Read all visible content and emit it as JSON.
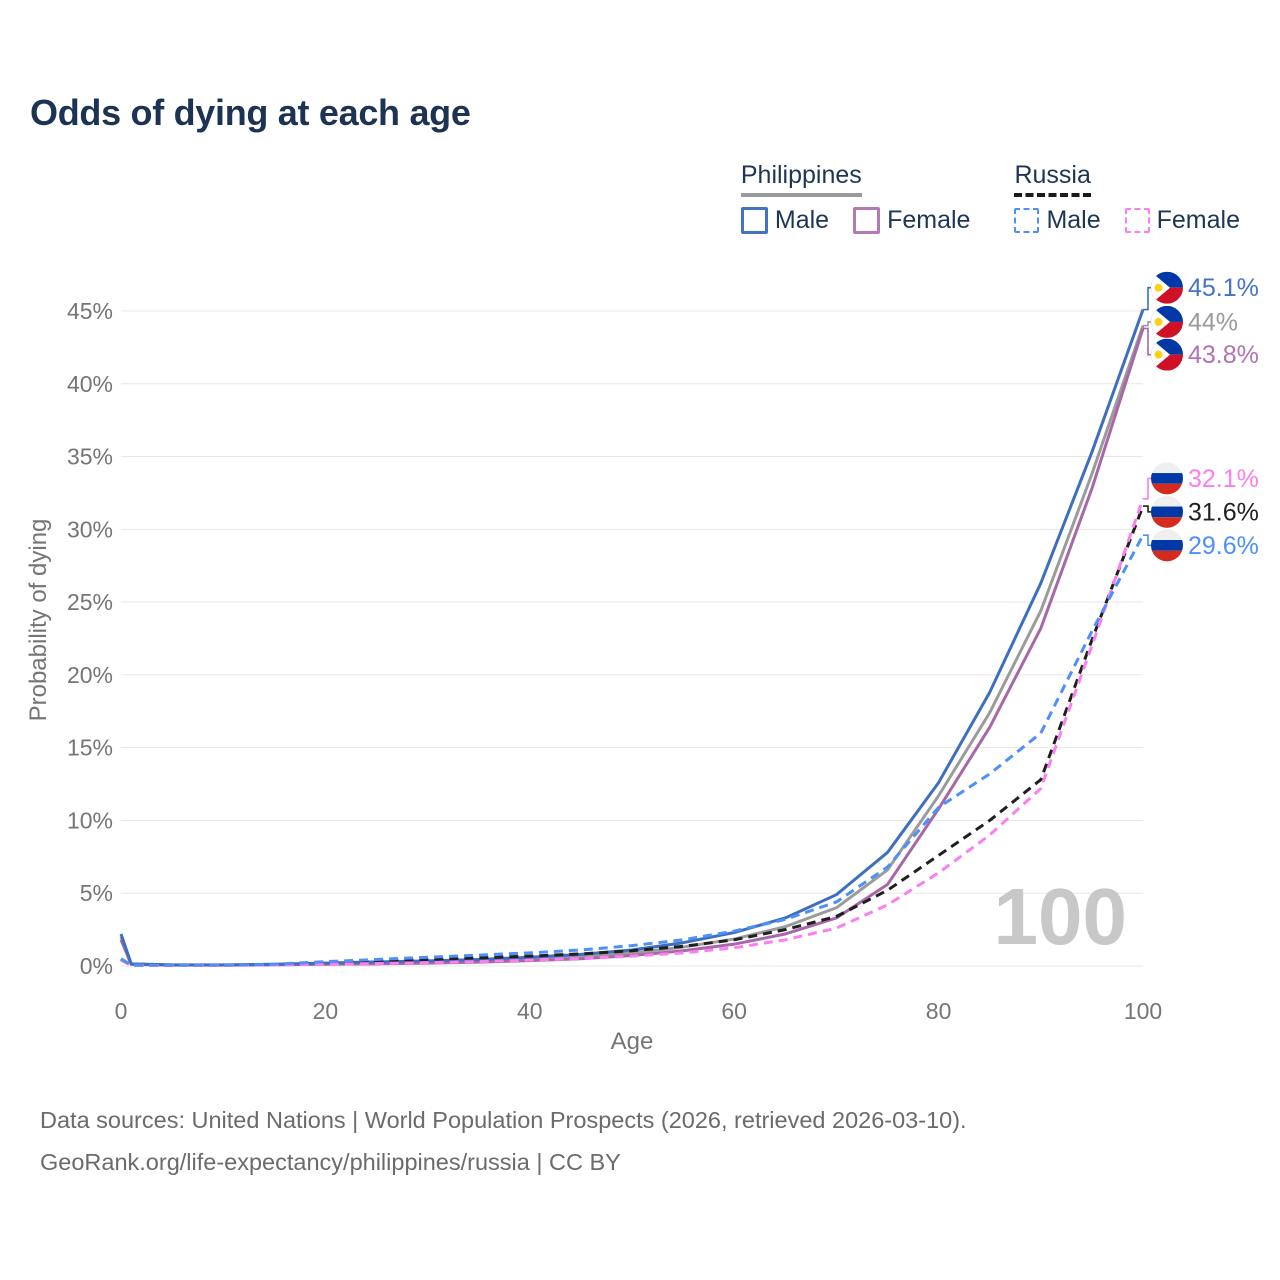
{
  "page": {
    "title": "Odds of dying at each age"
  },
  "legend": {
    "position": "top-right",
    "groups": [
      {
        "label": "Philippines",
        "underline_color": "#9a9a9a",
        "underline_style": "solid",
        "items": [
          {
            "label": "Male",
            "color": "#4472c4",
            "dash_style": "solid"
          },
          {
            "label": "Female",
            "color": "#b279b2",
            "dash_style": "solid"
          }
        ]
      },
      {
        "label": "Russia",
        "underline_color": "#1a1a1a",
        "underline_style": "dashed",
        "items": [
          {
            "label": "Male",
            "color": "#4d8ffb",
            "dash_style": "dashed"
          },
          {
            "label": "Female",
            "color": "#fb7ef2",
            "dash_style": "dashed"
          }
        ]
      }
    ]
  },
  "chart_data": {
    "type": "line",
    "title": "Odds of dying at each age",
    "xlabel": "Age",
    "ylabel": "Probability of dying",
    "xlim": [
      0,
      100
    ],
    "ylim": [
      0,
      47.2
    ],
    "x_ticks": [
      0,
      20,
      40,
      60,
      80,
      100
    ],
    "y_ticks": [
      0,
      5,
      10,
      15,
      20,
      25,
      30,
      35,
      40,
      45
    ],
    "y_unit": "%",
    "grid": "horizontal",
    "grid_color": "#e7e7e7",
    "axis_text_color": "#757575",
    "watermark_text": "100",
    "watermark_color": "#c8c8c8",
    "ages": [
      0,
      1,
      5,
      10,
      15,
      20,
      25,
      30,
      35,
      40,
      45,
      50,
      55,
      60,
      65,
      70,
      75,
      80,
      85,
      90,
      95,
      100
    ],
    "series": [
      {
        "name": "Philippines",
        "country": "Philippines",
        "sex": "all",
        "color": "#9b9b9b",
        "dash": null,
        "values": [
          2.0,
          0.13,
          0.07,
          0.07,
          0.1,
          0.16,
          0.22,
          0.28,
          0.36,
          0.48,
          0.65,
          0.9,
          1.3,
          1.85,
          2.7,
          4.0,
          6.6,
          11.7,
          17.4,
          24.4,
          33.8,
          44.0
        ],
        "end_label": {
          "text": "44%",
          "color": "#9b9b9b",
          "flag": "philippines-flag-icon",
          "label_at": 44.25
        }
      },
      {
        "name": "Philippines Female",
        "country": "Philippines",
        "sex": "female",
        "color": "#a768a7",
        "dash": null,
        "values": [
          1.8,
          0.11,
          0.06,
          0.06,
          0.08,
          0.12,
          0.15,
          0.2,
          0.27,
          0.37,
          0.5,
          0.72,
          1.05,
          1.5,
          2.2,
          3.3,
          5.6,
          10.8,
          16.4,
          23.2,
          32.8,
          43.8
        ],
        "end_label": {
          "text": "43.8%",
          "color": "#b273b2",
          "flag": "philippines-flag-icon",
          "label_at": 42.0
        }
      },
      {
        "name": "Philippines Male",
        "country": "Philippines",
        "sex": "male",
        "color": "#3e6fbe",
        "dash": null,
        "values": [
          2.2,
          0.15,
          0.08,
          0.08,
          0.12,
          0.2,
          0.28,
          0.35,
          0.45,
          0.6,
          0.8,
          1.1,
          1.6,
          2.3,
          3.3,
          4.9,
          7.8,
          12.6,
          18.8,
          26.3,
          35.3,
          45.1
        ],
        "end_label": {
          "text": "45.1%",
          "color": "#4273c8",
          "flag": "philippines-flag-icon",
          "label_at": 46.6
        }
      },
      {
        "name": "Russia",
        "country": "Russia",
        "sex": "all",
        "color": "#1f1f1f",
        "dash": "9,6",
        "values": [
          0.45,
          0.05,
          0.04,
          0.05,
          0.1,
          0.22,
          0.33,
          0.45,
          0.56,
          0.68,
          0.83,
          1.05,
          1.35,
          1.8,
          2.5,
          3.4,
          5.2,
          7.6,
          10.0,
          12.8,
          22.4,
          31.6
        ],
        "end_label": {
          "text": "31.6%",
          "color": "#1f1f1f",
          "flag": "russia-flag-icon",
          "label_at": 31.2
        }
      },
      {
        "name": "Russia Female",
        "country": "Russia",
        "sex": "female",
        "color": "#fb7ef2",
        "dash": "9,6",
        "values": [
          0.4,
          0.04,
          0.03,
          0.04,
          0.07,
          0.12,
          0.17,
          0.23,
          0.3,
          0.4,
          0.52,
          0.68,
          0.9,
          1.25,
          1.8,
          2.6,
          4.2,
          6.4,
          9.0,
          12.2,
          22.0,
          32.1
        ],
        "end_label": {
          "text": "32.1%",
          "color": "#fb7ef2",
          "flag": "russia-flag-icon",
          "label_at": 33.5
        }
      },
      {
        "name": "Russia Male",
        "country": "Russia",
        "sex": "male",
        "color": "#4d8ffb",
        "dash": "9,6",
        "values": [
          0.5,
          0.06,
          0.05,
          0.06,
          0.12,
          0.3,
          0.45,
          0.6,
          0.75,
          0.9,
          1.1,
          1.4,
          1.8,
          2.4,
          3.2,
          4.4,
          6.8,
          10.9,
          13.2,
          16.0,
          23.0,
          29.6
        ],
        "end_label": {
          "text": "29.6%",
          "color": "#4d8ffb",
          "flag": "russia-flag-icon",
          "label_at": 28.9
        }
      }
    ],
    "flag_colors": {
      "philippines": {
        "blue": "#0038a8",
        "red": "#ce1126",
        "white": "#ffffff",
        "sun": "#fcd116"
      },
      "russia": {
        "white": "#efefef",
        "blue": "#0039a6",
        "red": "#d52b1e"
      }
    }
  },
  "footer": {
    "line1": "Data sources: United Nations | World Population Prospects (2026, retrieved 2026-03-10).",
    "line2": "GeoRank.org/life-expectancy/philippines/russia | CC BY"
  }
}
